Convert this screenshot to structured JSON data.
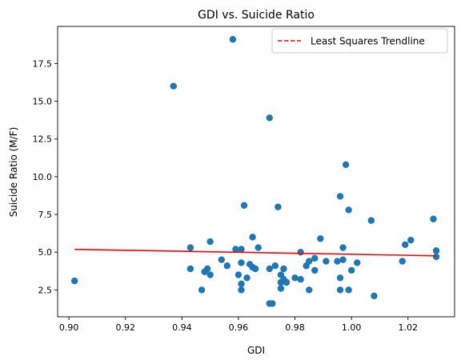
{
  "chart_data": {
    "type": "scatter",
    "title": "GDI vs. Suicide Ratio",
    "xlabel": "GDI",
    "ylabel": "Suicide Ratio (M/F)",
    "xlim": [
      0.896,
      1.0365
    ],
    "ylim": [
      0.72,
      19.96
    ],
    "xticks": [
      0.9,
      0.92,
      0.94,
      0.96,
      0.98,
      1.0,
      1.02
    ],
    "xtick_labels": [
      "0.90",
      "0.92",
      "0.94",
      "0.96",
      "0.98",
      "1.00",
      "1.02"
    ],
    "yticks": [
      2.5,
      5.0,
      7.5,
      10.0,
      12.5,
      15.0,
      17.5
    ],
    "ytick_labels": [
      "2.5",
      "5.0",
      "7.5",
      "10.0",
      "12.5",
      "15.0",
      "17.5"
    ],
    "grid": false,
    "legend_position": "top-right",
    "legend": [
      {
        "label": "Least Squares Trendline",
        "style": "dashed",
        "color": "#ff0000"
      }
    ],
    "point_color": "#1f77b4",
    "trend_color": "#ff0000",
    "series": [
      {
        "kind": "points",
        "x": [
          0.902,
          0.937,
          0.943,
          0.943,
          0.947,
          0.948,
          0.949,
          0.95,
          0.95,
          0.954,
          0.956,
          0.958,
          0.959,
          0.96,
          0.961,
          0.961,
          0.961,
          0.961,
          0.962,
          0.963,
          0.964,
          0.965,
          0.965,
          0.966,
          0.967,
          0.971,
          0.971,
          0.971,
          0.972,
          0.973,
          0.974,
          0.975,
          0.975,
          0.975,
          0.976,
          0.976,
          0.977,
          0.977,
          0.98,
          0.982,
          0.982,
          0.984,
          0.985,
          0.985,
          0.987,
          0.987,
          0.989,
          0.991,
          0.995,
          0.996,
          0.996,
          0.996,
          0.997,
          0.997,
          0.998,
          0.999,
          0.999,
          1.0,
          1.002,
          1.007,
          1.008,
          1.018,
          1.019,
          1.021,
          1.029,
          1.03,
          1.03
        ],
        "y": [
          3.1,
          16.0,
          5.3,
          3.9,
          2.5,
          3.7,
          3.9,
          5.7,
          3.5,
          4.5,
          4.1,
          19.1,
          5.2,
          3.5,
          2.9,
          4.3,
          5.2,
          2.5,
          8.1,
          3.3,
          4.2,
          6.0,
          4.0,
          3.9,
          5.3,
          13.9,
          3.9,
          1.6,
          1.6,
          4.1,
          8.0,
          3.5,
          3.0,
          2.6,
          3.9,
          3.2,
          3.0,
          3.0,
          3.3,
          5.0,
          3.2,
          4.1,
          4.4,
          2.5,
          3.8,
          4.6,
          5.9,
          4.4,
          4.4,
          8.7,
          3.3,
          2.5,
          4.5,
          5.3,
          10.8,
          2.5,
          7.8,
          3.8,
          4.3,
          7.1,
          2.1,
          4.4,
          5.5,
          5.8,
          7.2,
          5.1,
          4.7
        ]
      },
      {
        "kind": "trendline",
        "name": "Least Squares Trendline",
        "x": [
          0.902,
          1.03
        ],
        "y": [
          5.19,
          4.76
        ]
      }
    ]
  }
}
